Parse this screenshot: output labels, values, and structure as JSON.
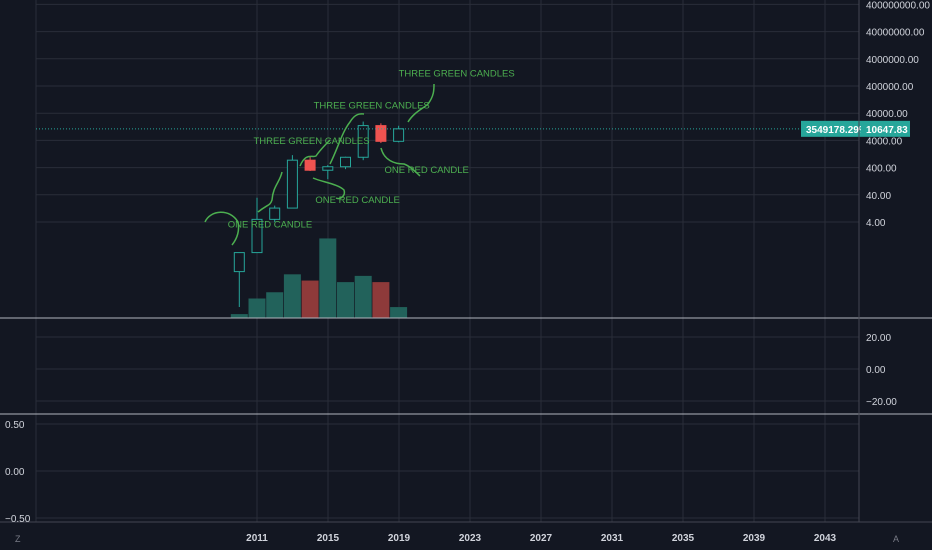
{
  "chart_data": {
    "type": "candlestick",
    "colors": {
      "up": "#26a69a",
      "down": "#ef5350",
      "annotation": "#4caf50",
      "background": "#131722",
      "grid": "#2a2e39"
    },
    "x_axis": {
      "ticks": [
        "2011",
        "2015",
        "2019",
        "2023",
        "2027",
        "2031",
        "2035",
        "2039",
        "2043"
      ]
    },
    "price_axis": {
      "scale": "log",
      "ticks": [
        "400000000.00",
        "40000000.00",
        "4000000.00",
        "400000.00",
        "40000.00",
        "4000.00",
        "400.00",
        "40.00",
        "4.00"
      ]
    },
    "candles": [
      {
        "year": 2010,
        "open": 0.06,
        "high": 0.3,
        "low": 0.003,
        "close": 0.3
      },
      {
        "year": 2011,
        "open": 0.3,
        "high": 31,
        "low": 0.3,
        "close": 5
      },
      {
        "year": 2012,
        "open": 5,
        "high": 16,
        "low": 4,
        "close": 13
      },
      {
        "year": 2013,
        "open": 13,
        "high": 1150,
        "low": 13,
        "close": 750
      },
      {
        "year": 2014,
        "open": 750,
        "high": 1000,
        "low": 300,
        "close": 320
      },
      {
        "year": 2015,
        "open": 320,
        "high": 500,
        "low": 150,
        "close": 430
      },
      {
        "year": 2016,
        "open": 430,
        "high": 1000,
        "low": 350,
        "close": 960
      },
      {
        "year": 2017,
        "open": 960,
        "high": 19700,
        "low": 750,
        "close": 14000
      },
      {
        "year": 2018,
        "open": 14000,
        "high": 17000,
        "low": 3200,
        "close": 3700
      },
      {
        "year": 2019,
        "open": 3700,
        "high": 13800,
        "low": 3400,
        "close": 10647.83
      }
    ],
    "volume": [
      {
        "year": 2010,
        "value": 0.5,
        "dir": "up"
      },
      {
        "year": 2011,
        "value": 2.5,
        "dir": "up"
      },
      {
        "year": 2012,
        "value": 3.3,
        "dir": "up"
      },
      {
        "year": 2013,
        "value": 5.6,
        "dir": "up"
      },
      {
        "year": 2014,
        "value": 4.8,
        "dir": "down"
      },
      {
        "year": 2015,
        "value": 10.2,
        "dir": "up"
      },
      {
        "year": 2016,
        "value": 4.6,
        "dir": "up"
      },
      {
        "year": 2017,
        "value": 5.4,
        "dir": "up"
      },
      {
        "year": 2018,
        "value": 4.6,
        "dir": "down"
      },
      {
        "year": 2019,
        "value": 1.4,
        "dir": "up"
      }
    ],
    "last_price": {
      "label": "10647.83",
      "pct_label": "3549178.29%"
    },
    "indicator_pane_1": {
      "ticks": [
        "20.00",
        "0.00",
        "−20.00"
      ]
    },
    "indicator_pane_2": {
      "ticks": [
        "0.50",
        "0.00",
        "−0.50"
      ]
    },
    "annotations": [
      {
        "text": "ONE RED CANDLE",
        "year": 2009.35,
        "price": 2.5
      },
      {
        "text": "THREE GREEN CANDLES",
        "year": 2010.8,
        "price": 3000
      },
      {
        "text": "ONE RED CANDLE",
        "year": 2014.3,
        "price": 20
      },
      {
        "text": "THREE GREEN CANDLES",
        "year": 2014.2,
        "price": 60000
      },
      {
        "text": "ONE RED CANDLE",
        "year": 2018.2,
        "price": 250
      },
      {
        "text": "THREE GREEN CANDLES",
        "year": 2019.0,
        "price": 900000
      }
    ],
    "corner_labels": {
      "left": "Z",
      "right": "A"
    }
  }
}
